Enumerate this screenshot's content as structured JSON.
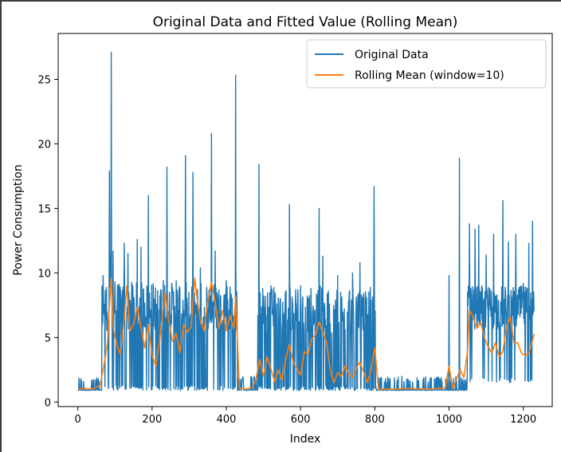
{
  "chart_data": {
    "type": "line",
    "title": "Original Data and Fitted Value (Rolling Mean)",
    "xlabel": "Index",
    "ylabel": "Power Consumption",
    "xlim": [
      -53,
      1278
    ],
    "ylim": [
      -0.35,
      28.55
    ],
    "xticks": [
      0,
      200,
      400,
      600,
      800,
      1000,
      1200
    ],
    "yticks": [
      0,
      5,
      10,
      15,
      20,
      25
    ],
    "legend_position": "upper right",
    "grid": false,
    "n_points": 1230,
    "series": [
      {
        "name": "Original Data",
        "color": "#1f77b4",
        "segments": [
          {
            "x0": 0,
            "x1": 65,
            "low": 0.9,
            "high": 1.9,
            "note_density": 0.25
          },
          {
            "x0": 65,
            "x1": 430,
            "low": 0.9,
            "high": 9.3,
            "note_density": 0.7
          },
          {
            "x0": 430,
            "x1": 485,
            "low": 0.9,
            "high": 2.0,
            "note_density": 0.3
          },
          {
            "x0": 485,
            "x1": 805,
            "low": 0.9,
            "high": 9.0,
            "note_density": 0.6
          },
          {
            "x0": 805,
            "x1": 1050,
            "low": 0.9,
            "high": 2.0,
            "note_density": 0.2
          },
          {
            "x0": 1050,
            "x1": 1230,
            "low": 1.5,
            "high": 9.0,
            "note_density": 0.9
          }
        ],
        "spikes": [
          [
            68,
            9.8
          ],
          [
            75,
            6.4
          ],
          [
            85,
            17.9
          ],
          [
            88,
            11.5
          ],
          [
            90,
            27.1
          ],
          [
            95,
            11.7
          ],
          [
            100,
            9.3
          ],
          [
            125,
            12.3
          ],
          [
            135,
            11.5
          ],
          [
            160,
            12.6
          ],
          [
            170,
            12.0
          ],
          [
            190,
            16.0
          ],
          [
            230,
            9.4
          ],
          [
            240,
            18.2
          ],
          [
            265,
            9.4
          ],
          [
            290,
            19.1
          ],
          [
            310,
            17.8
          ],
          [
            330,
            10.4
          ],
          [
            360,
            20.8
          ],
          [
            370,
            11.7
          ],
          [
            400,
            9.4
          ],
          [
            425,
            25.3
          ],
          [
            488,
            18.4
          ],
          [
            520,
            9.0
          ],
          [
            570,
            15.3
          ],
          [
            600,
            9.0
          ],
          [
            650,
            15.0
          ],
          [
            660,
            11.3
          ],
          [
            700,
            9.8
          ],
          [
            740,
            10.0
          ],
          [
            760,
            10.8
          ],
          [
            798,
            16.7
          ],
          [
            1000,
            9.8
          ],
          [
            1028,
            18.9
          ],
          [
            1055,
            13.8
          ],
          [
            1070,
            13.4
          ],
          [
            1080,
            13.7
          ],
          [
            1100,
            11.4
          ],
          [
            1120,
            13.0
          ],
          [
            1145,
            15.6
          ],
          [
            1160,
            12.4
          ],
          [
            1180,
            13.0
          ],
          [
            1200,
            9.2
          ],
          [
            1215,
            12.3
          ],
          [
            1225,
            14.0
          ]
        ]
      },
      {
        "name": "Rolling Mean (window=10)",
        "color": "#ff7f0e",
        "points": [
          [
            0,
            1.0
          ],
          [
            20,
            1.05
          ],
          [
            40,
            1.0
          ],
          [
            60,
            1.3
          ],
          [
            70,
            2.8
          ],
          [
            80,
            4.6
          ],
          [
            85,
            7.5
          ],
          [
            90,
            9.6
          ],
          [
            95,
            5.8
          ],
          [
            105,
            4.4
          ],
          [
            115,
            3.7
          ],
          [
            125,
            6.5
          ],
          [
            132,
            9.0
          ],
          [
            140,
            5.5
          ],
          [
            150,
            6.0
          ],
          [
            160,
            7.4
          ],
          [
            170,
            5.8
          ],
          [
            180,
            4.2
          ],
          [
            190,
            6.0
          ],
          [
            200,
            3.6
          ],
          [
            210,
            2.8
          ],
          [
            220,
            4.7
          ],
          [
            235,
            8.5
          ],
          [
            245,
            6.3
          ],
          [
            255,
            4.7
          ],
          [
            265,
            5.3
          ],
          [
            275,
            3.8
          ],
          [
            285,
            6.0
          ],
          [
            295,
            5.4
          ],
          [
            305,
            5.8
          ],
          [
            315,
            9.6
          ],
          [
            320,
            8.3
          ],
          [
            330,
            6.3
          ],
          [
            340,
            5.5
          ],
          [
            350,
            7.8
          ],
          [
            360,
            9.3
          ],
          [
            370,
            7.7
          ],
          [
            380,
            5.7
          ],
          [
            390,
            7.1
          ],
          [
            400,
            5.5
          ],
          [
            410,
            6.7
          ],
          [
            420,
            5.7
          ],
          [
            425,
            8.2
          ],
          [
            435,
            1.1
          ],
          [
            450,
            1.0
          ],
          [
            470,
            1.1
          ],
          [
            480,
            1.8
          ],
          [
            490,
            3.3
          ],
          [
            500,
            2.0
          ],
          [
            510,
            3.5
          ],
          [
            520,
            2.6
          ],
          [
            530,
            1.6
          ],
          [
            540,
            2.5
          ],
          [
            550,
            1.7
          ],
          [
            560,
            3.3
          ],
          [
            570,
            4.5
          ],
          [
            580,
            3.1
          ],
          [
            590,
            2.6
          ],
          [
            600,
            2.1
          ],
          [
            610,
            3.9
          ],
          [
            620,
            3.7
          ],
          [
            630,
            4.9
          ],
          [
            640,
            5.2
          ],
          [
            650,
            6.2
          ],
          [
            660,
            5.4
          ],
          [
            670,
            4.6
          ],
          [
            680,
            2.5
          ],
          [
            690,
            1.5
          ],
          [
            700,
            2.3
          ],
          [
            710,
            2.0
          ],
          [
            720,
            2.8
          ],
          [
            730,
            2.2
          ],
          [
            740,
            1.9
          ],
          [
            750,
            2.6
          ],
          [
            760,
            3.1
          ],
          [
            770,
            2.3
          ],
          [
            780,
            1.5
          ],
          [
            790,
            2.5
          ],
          [
            800,
            4.2
          ],
          [
            810,
            1.0
          ],
          [
            850,
            1.0
          ],
          [
            900,
            1.05
          ],
          [
            950,
            1.0
          ],
          [
            990,
            1.1
          ],
          [
            1000,
            2.8
          ],
          [
            1010,
            1.0
          ],
          [
            1020,
            1.8
          ],
          [
            1030,
            2.5
          ],
          [
            1040,
            1.9
          ],
          [
            1050,
            4.0
          ],
          [
            1055,
            7.1
          ],
          [
            1065,
            6.6
          ],
          [
            1075,
            5.7
          ],
          [
            1085,
            6.2
          ],
          [
            1095,
            5.0
          ],
          [
            1105,
            4.3
          ],
          [
            1115,
            3.8
          ],
          [
            1125,
            4.6
          ],
          [
            1135,
            3.5
          ],
          [
            1145,
            3.9
          ],
          [
            1155,
            5.8
          ],
          [
            1165,
            6.6
          ],
          [
            1175,
            4.6
          ],
          [
            1185,
            4.6
          ],
          [
            1195,
            3.8
          ],
          [
            1205,
            3.6
          ],
          [
            1215,
            3.8
          ],
          [
            1225,
            4.8
          ],
          [
            1230,
            5.3
          ]
        ]
      }
    ]
  }
}
